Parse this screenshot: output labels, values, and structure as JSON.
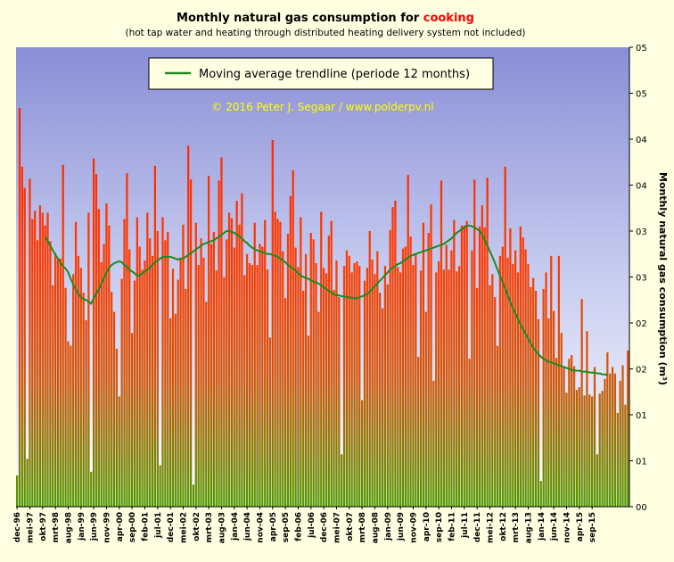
{
  "title_main": "Monthly natural gas consumption for ",
  "title_highlight": "cooking",
  "subtitle": "(hot tap water and heating through distributed heating delivery system not included)",
  "legend_label": "Moving average trendline (periode 12 months)",
  "copyright": "© 2016 Peter J. Segaar / www.polderpv.nl",
  "colors": {
    "background": "#ffffe1",
    "bar_top": "#ff2200",
    "bar_bottom": "#5a9a00",
    "trend": "#1e8a1e",
    "copyright": "#ffff00",
    "plot_top": "#8a8ed6"
  },
  "chart_data": {
    "type": "bar",
    "title": "Monthly natural gas consumption for cooking",
    "ylabel": "Monthly natural gas consumption (m³)",
    "ytick_labels": [
      "05",
      "05",
      "04",
      "04",
      "03",
      "03",
      "02",
      "02",
      "01",
      "01",
      "00"
    ],
    "ylim": [
      0,
      5
    ],
    "start_month": "dec-96",
    "xtick_labels": [
      "dec-96",
      "mei-97",
      "okt-97",
      "mrt-98",
      "aug-98",
      "jan-99",
      "jun-99",
      "nov-99",
      "apr-00",
      "sep-00",
      "feb-01",
      "jul-01",
      "dec-01",
      "mei-02",
      "okt-02",
      "mrt-03",
      "aug-03",
      "jan-04",
      "jun-04",
      "nov-04",
      "apr-05",
      "sep-05",
      "feb-06",
      "jul-06",
      "dec-06",
      "mei-07",
      "okt-07",
      "mrt-08",
      "aug-08",
      "jan-09",
      "jun-09",
      "nov-09",
      "apr-10",
      "sep-10",
      "feb-11",
      "jul-11",
      "dec-11",
      "mei-12",
      "okt-12",
      "mrt-13",
      "aug-13",
      "jan-14",
      "jun-14",
      "nov-14",
      "apr-15",
      "sep-15"
    ],
    "values": [
      0.34,
      4.34,
      3.7,
      3.47,
      0.52,
      3.57,
      3.13,
      3.22,
      2.9,
      3.28,
      3.2,
      3.06,
      3.2,
      2.89,
      2.41,
      2.76,
      2.69,
      2.7,
      3.72,
      2.38,
      1.8,
      1.75,
      2.53,
      3.1,
      2.73,
      2.6,
      2.33,
      2.03,
      3.2,
      0.38,
      3.79,
      3.62,
      3.24,
      2.66,
      2.86,
      3.3,
      3.06,
      2.34,
      2.12,
      1.72,
      1.2,
      2.48,
      3.13,
      3.63,
      2.8,
      1.89,
      2.46,
      3.15,
      2.83,
      2.58,
      2.68,
      3.2,
      2.92,
      2.73,
      3.71,
      3.0,
      0.45,
      3.15,
      2.9,
      2.99,
      2.05,
      2.59,
      2.1,
      2.47,
      2.71,
      3.07,
      2.37,
      3.93,
      3.56,
      0.24,
      3.09,
      2.63,
      2.92,
      2.71,
      2.23,
      3.6,
      2.86,
      2.99,
      2.57,
      3.55,
      3.8,
      2.5,
      2.91,
      3.2,
      3.14,
      2.82,
      3.33,
      3.07,
      3.41,
      2.52,
      2.75,
      2.65,
      2.63,
      3.09,
      2.63,
      2.86,
      2.83,
      3.12,
      2.58,
      1.84,
      3.99,
      3.21,
      3.13,
      3.1,
      2.78,
      2.27,
      2.97,
      3.38,
      3.66,
      2.82,
      2.61,
      3.15,
      2.35,
      2.75,
      1.86,
      2.98,
      2.91,
      2.65,
      2.12,
      3.21,
      2.6,
      2.54,
      2.95,
      3.11,
      2.36,
      2.68,
      2.28,
      0.57,
      2.62,
      2.79,
      2.73,
      2.55,
      2.65,
      2.67,
      2.62,
      1.16,
      2.46,
      2.6,
      3.0,
      2.69,
      2.53,
      2.78,
      2.33,
      2.16,
      2.62,
      2.42,
      3.01,
      3.26,
      3.33,
      2.61,
      2.55,
      2.81,
      2.83,
      3.61,
      2.94,
      2.63,
      2.75,
      1.63,
      2.57,
      3.09,
      2.12,
      2.98,
      3.29,
      1.37,
      2.55,
      2.67,
      3.55,
      2.58,
      2.85,
      2.58,
      2.79,
      3.12,
      2.56,
      2.62,
      3.06,
      3.06,
      3.11,
      1.61,
      2.79,
      3.56,
      2.38,
      3.05,
      3.28,
      3.04,
      3.58,
      2.41,
      2.53,
      2.28,
      1.75,
      2.73,
      2.83,
      3.7,
      2.71,
      3.03,
      2.64,
      2.79,
      2.55,
      3.05,
      2.93,
      2.8,
      2.64,
      2.39,
      2.49,
      2.35,
      2.04,
      0.28,
      2.37,
      2.55,
      2.05,
      2.73,
      2.13,
      1.62,
      2.73,
      1.89,
      1.51,
      1.24,
      1.61,
      1.65,
      1.53,
      1.27,
      1.3,
      2.26,
      1.21,
      1.91,
      1.22,
      1.2,
      1.52,
      0.57,
      1.23,
      1.26,
      1.39,
      1.68,
      1.45,
      1.52,
      1.45,
      1.02,
      1.37,
      1.54,
      1.11,
      1.7
    ],
    "trend_x": [
      0,
      1,
      2,
      3,
      4,
      5,
      6,
      7,
      8,
      9,
      10,
      11,
      12,
      13,
      14,
      15,
      16,
      17,
      18,
      19,
      20,
      21,
      22,
      23,
      24,
      25,
      26,
      27,
      28,
      29,
      30,
      31,
      32,
      33,
      34,
      35,
      36,
      37,
      38,
      39,
      40,
      41,
      42,
      43,
      44,
      45,
      46,
      47,
      48,
      49,
      50,
      51,
      52,
      53,
      54,
      55,
      56,
      57,
      58,
      59,
      60,
      61,
      62,
      63,
      64,
      65,
      66,
      67,
      68,
      69,
      70,
      71,
      72,
      73,
      74,
      75,
      76,
      77,
      78,
      79,
      80,
      81,
      82,
      83,
      84,
      85,
      86,
      87,
      88,
      89,
      90,
      91,
      92,
      93,
      94,
      95,
      96,
      97,
      98,
      99,
      100,
      101,
      102,
      103,
      104,
      105,
      106,
      107,
      108,
      109,
      110,
      111,
      112,
      113,
      114,
      115,
      116,
      117,
      118,
      119,
      120,
      121,
      122,
      123,
      124,
      125,
      126,
      127,
      128,
      129,
      130,
      131,
      132,
      133,
      134,
      135,
      136,
      137,
      138,
      139,
      140,
      141,
      142,
      143,
      144,
      145,
      146,
      147,
      148,
      149,
      150,
      151,
      152,
      153,
      154,
      155,
      156,
      157,
      158,
      159,
      160,
      161,
      162,
      163,
      164,
      165,
      166,
      167,
      168,
      169,
      170,
      171,
      172,
      173,
      174,
      175,
      176,
      177,
      178,
      179,
      180,
      181,
      182,
      183,
      184,
      185,
      186,
      187,
      188,
      189,
      190,
      191,
      192,
      193,
      194,
      195,
      196,
      197,
      198,
      199,
      200,
      201,
      202,
      203,
      204,
      205,
      206,
      207,
      208,
      209,
      210,
      211,
      212,
      213,
      214,
      215,
      216,
      217,
      218,
      219,
      220,
      221,
      222,
      223,
      224,
      225,
      226,
      227,
      228,
      229,
      230,
      231,
      232
    ],
    "trend": [
      null,
      null,
      null,
      null,
      null,
      null,
      null,
      null,
      null,
      null,
      null,
      2.94,
      2.89,
      2.84,
      2.79,
      2.74,
      2.7,
      2.65,
      2.62,
      2.59,
      2.55,
      2.48,
      2.42,
      2.36,
      2.32,
      2.28,
      2.26,
      2.25,
      2.23,
      2.21,
      2.27,
      2.32,
      2.37,
      2.43,
      2.49,
      2.55,
      2.6,
      2.63,
      2.65,
      2.66,
      2.67,
      2.66,
      2.63,
      2.61,
      2.58,
      2.56,
      2.54,
      2.51,
      2.52,
      2.54,
      2.56,
      2.58,
      2.6,
      2.63,
      2.66,
      2.68,
      2.7,
      2.72,
      2.72,
      2.72,
      2.72,
      2.71,
      2.7,
      2.69,
      2.7,
      2.7,
      2.72,
      2.74,
      2.76,
      2.78,
      2.8,
      2.82,
      2.84,
      2.86,
      2.87,
      2.88,
      2.89,
      2.9,
      2.92,
      2.94,
      2.96,
      2.98,
      3.0,
      3.0,
      2.99,
      2.98,
      2.96,
      2.94,
      2.92,
      2.89,
      2.87,
      2.84,
      2.82,
      2.8,
      2.79,
      2.78,
      2.77,
      2.76,
      2.75,
      2.75,
      2.74,
      2.73,
      2.72,
      2.7,
      2.68,
      2.66,
      2.63,
      2.61,
      2.59,
      2.57,
      2.54,
      2.52,
      2.5,
      2.49,
      2.48,
      2.46,
      2.45,
      2.44,
      2.43,
      2.41,
      2.39,
      2.37,
      2.35,
      2.33,
      2.31,
      2.3,
      2.3,
      2.29,
      2.29,
      2.28,
      2.28,
      2.27,
      2.27,
      2.27,
      2.28,
      2.29,
      2.3,
      2.32,
      2.34,
      2.37,
      2.4,
      2.43,
      2.46,
      2.49,
      2.52,
      2.55,
      2.58,
      2.6,
      2.62,
      2.64,
      2.65,
      2.67,
      2.69,
      2.71,
      2.73,
      2.74,
      2.75,
      2.76,
      2.77,
      2.78,
      2.79,
      2.8,
      2.81,
      2.82,
      2.83,
      2.84,
      2.85,
      2.86,
      2.88,
      2.9,
      2.92,
      2.95,
      2.98,
      3.0,
      3.02,
      3.04,
      3.06,
      3.06,
      3.05,
      3.04,
      3.02,
      3.0,
      2.96,
      2.9,
      2.84,
      2.78,
      2.72,
      2.65,
      2.58,
      2.51,
      2.44,
      2.37,
      2.3,
      2.23,
      2.16,
      2.1,
      2.04,
      1.98,
      1.93,
      1.88,
      1.83,
      1.78,
      1.73,
      1.69,
      1.66,
      1.63,
      1.61,
      1.59,
      1.58,
      1.57,
      1.56,
      1.55,
      1.54,
      1.53,
      1.52,
      1.51,
      1.5,
      1.49,
      1.48,
      1.48,
      1.48,
      1.47,
      1.47,
      1.47,
      1.46,
      1.46,
      1.46,
      1.45,
      1.45,
      1.44,
      1.44,
      1.43
    ]
  }
}
